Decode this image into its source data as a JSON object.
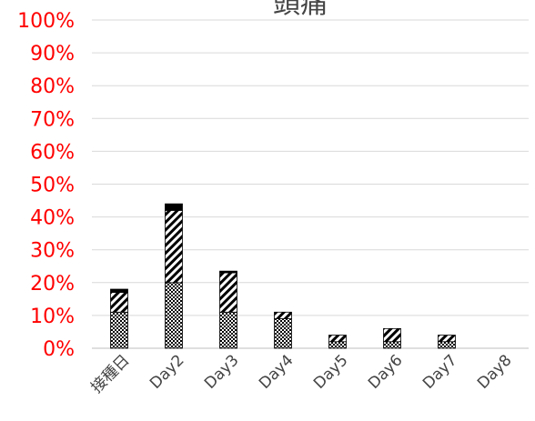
{
  "chart_data": {
    "type": "bar",
    "stacked": true,
    "title": "頭痛",
    "xlabel": "",
    "ylabel": "",
    "categories": [
      "接種日",
      "Day2",
      "Day3",
      "Day4",
      "Day5",
      "Day6",
      "Day7",
      "Day8"
    ],
    "ylim": [
      0,
      100
    ],
    "y_ticks": [
      "0%",
      "10%",
      "20%",
      "30%",
      "40%",
      "50%",
      "60%",
      "70%",
      "80%",
      "90%",
      "100%"
    ],
    "grid": true,
    "legend": "none",
    "series": [
      {
        "values": [
          11,
          20,
          11,
          9,
          2,
          2,
          2,
          0
        ],
        "pattern": "checker",
        "color": "#000000"
      },
      {
        "values": [
          6,
          22,
          12,
          2,
          2,
          4,
          2,
          0
        ],
        "pattern": "diagonal",
        "color": "#000000"
      },
      {
        "values": [
          1,
          2,
          0.5,
          0,
          0,
          0,
          0,
          0
        ],
        "pattern": "solid",
        "color": "#000000"
      }
    ],
    "colors": {
      "ytick": "#ff0000",
      "xtick": "#444444",
      "grid": "#d9d9d9",
      "title": "#444444"
    }
  }
}
